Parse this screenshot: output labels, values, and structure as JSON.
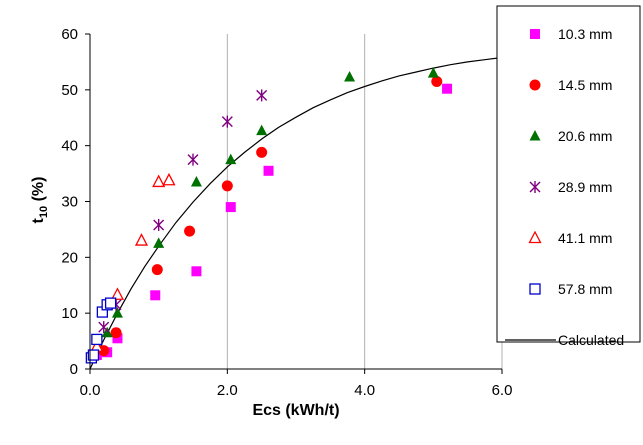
{
  "chart_data": {
    "type": "scatter",
    "title": "",
    "xlabel": "Ecs (kWh/t)",
    "ylabel_main": "t",
    "ylabel_sub": "10",
    "ylabel_tail": " (%)",
    "xlim": [
      0,
      6
    ],
    "ylim": [
      0,
      60
    ],
    "x_ticks": [
      {
        "value": 0,
        "label": "0.0"
      },
      {
        "value": 2,
        "label": "2.0"
      },
      {
        "value": 4,
        "label": "4.0"
      },
      {
        "value": 6,
        "label": "6.0"
      }
    ],
    "y_ticks": [
      {
        "value": 0,
        "label": "0"
      },
      {
        "value": 10,
        "label": "10"
      },
      {
        "value": 20,
        "label": "20"
      },
      {
        "value": 30,
        "label": "30"
      },
      {
        "value": 40,
        "label": "40"
      },
      {
        "value": 50,
        "label": "50"
      },
      {
        "value": 60,
        "label": "60"
      }
    ],
    "grid": "vertical",
    "legend_position": "right",
    "series": [
      {
        "name": "10.3 mm",
        "marker": "square-filled",
        "color": "#FF00FF",
        "points": [
          [
            0.1,
            2.5
          ],
          [
            0.25,
            3.0
          ],
          [
            0.4,
            5.5
          ],
          [
            0.95,
            13.2
          ],
          [
            1.55,
            17.5
          ],
          [
            2.05,
            29.0
          ],
          [
            2.6,
            35.5
          ],
          [
            5.2,
            50.2
          ]
        ]
      },
      {
        "name": "14.5 mm",
        "marker": "circle-filled",
        "color": "#FF0000",
        "points": [
          [
            0.2,
            3.3
          ],
          [
            0.38,
            6.5
          ],
          [
            0.98,
            17.8
          ],
          [
            1.45,
            24.7
          ],
          [
            2.0,
            32.8
          ],
          [
            2.5,
            38.8
          ],
          [
            5.05,
            51.5
          ]
        ]
      },
      {
        "name": "20.6 mm",
        "marker": "triangle-filled",
        "color": "#007000",
        "points": [
          [
            0.25,
            6.5
          ],
          [
            0.4,
            10.0
          ],
          [
            1.0,
            22.5
          ],
          [
            1.55,
            33.5
          ],
          [
            2.05,
            37.5
          ],
          [
            2.5,
            42.7
          ],
          [
            3.78,
            52.3
          ],
          [
            5.0,
            53.0
          ]
        ]
      },
      {
        "name": "28.9 mm",
        "marker": "asterisk",
        "color": "#800080",
        "points": [
          [
            0.2,
            7.5
          ],
          [
            0.38,
            11.5
          ],
          [
            1.0,
            25.8
          ],
          [
            1.5,
            37.5
          ],
          [
            2.0,
            44.3
          ],
          [
            2.5,
            49.0
          ]
        ]
      },
      {
        "name": "41.1 mm",
        "marker": "triangle-open",
        "color": "#FF0000",
        "points": [
          [
            0.1,
            4.0
          ],
          [
            0.4,
            13.3
          ],
          [
            0.75,
            23.0
          ],
          [
            1.0,
            33.5
          ],
          [
            1.15,
            33.8
          ]
        ]
      },
      {
        "name": "57.8 mm",
        "marker": "square-open",
        "color": "#0000CC",
        "points": [
          [
            0.02,
            2.0
          ],
          [
            0.05,
            2.5
          ],
          [
            0.1,
            5.3
          ],
          [
            0.18,
            10.2
          ],
          [
            0.25,
            11.5
          ],
          [
            0.3,
            11.8
          ]
        ]
      }
    ],
    "calculated": {
      "name": "Calculated",
      "color": "#000000",
      "points": [
        [
          0,
          0
        ],
        [
          0.2,
          5.2
        ],
        [
          0.4,
          10.0
        ],
        [
          0.6,
          14.4
        ],
        [
          0.8,
          18.4
        ],
        [
          1.0,
          22.0
        ],
        [
          1.25,
          26.2
        ],
        [
          1.5,
          29.9
        ],
        [
          1.75,
          33.2
        ],
        [
          2.0,
          36.2
        ],
        [
          2.25,
          38.8
        ],
        [
          2.5,
          41.2
        ],
        [
          2.75,
          43.3
        ],
        [
          3.0,
          45.1
        ],
        [
          3.25,
          46.8
        ],
        [
          3.5,
          48.2
        ],
        [
          3.75,
          49.5
        ],
        [
          4.0,
          50.6
        ],
        [
          4.25,
          51.6
        ],
        [
          4.5,
          52.5
        ],
        [
          4.75,
          53.2
        ],
        [
          5.0,
          53.9
        ],
        [
          5.25,
          54.5
        ],
        [
          5.5,
          55.0
        ],
        [
          5.75,
          55.4
        ],
        [
          6.0,
          55.8
        ]
      ]
    }
  }
}
